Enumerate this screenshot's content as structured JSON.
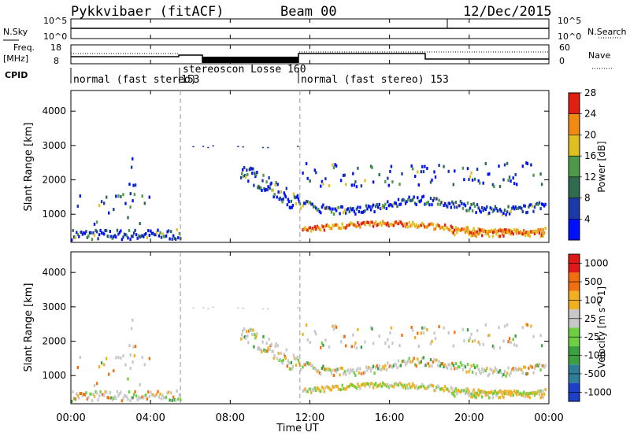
{
  "header": {
    "station": "Pykkvibaer (fitACF)",
    "beam": "Beam 00",
    "date": "12/Dec/2015"
  },
  "top_panels": {
    "nsky_label": "N.Sky",
    "nsky_ticks": [
      "10^5",
      "10^0"
    ],
    "nsearch_label": "N.Search",
    "nsearch_ticks": [
      "10^5",
      "10^0"
    ],
    "freq_label": "Freq.",
    "freq_unit": "[MHz]",
    "freq_ticks": [
      "18",
      "8"
    ],
    "nave_label": "Nave",
    "nave_ticks": [
      "60",
      "0"
    ],
    "cpid_label": "CPID",
    "cpid_segments": [
      {
        "label": "normal (fast stereo)",
        "start_h": 0,
        "end_h": 5.5
      },
      {
        "label": "153",
        "start_h": 5.5,
        "end_h": 5.5
      },
      {
        "label": "stereoscon Losse 160",
        "start_h": 5.5,
        "end_h": 11.5
      },
      {
        "label": "normal (fast stereo) 153",
        "start_h": 11.5,
        "end_h": 24
      }
    ]
  },
  "chart_data": [
    {
      "type": "heatmap",
      "parameter": "Power",
      "ylabel": "Slant Range [km]",
      "ylim": [
        180,
        4600
      ],
      "y_ticks": [
        "1000",
        "2000",
        "3000",
        "4000"
      ],
      "xlim": [
        0,
        24
      ],
      "x_ticks": [
        "00:00",
        "04:00",
        "08:00",
        "12:00",
        "16:00",
        "20:00",
        "00:00"
      ],
      "colorbar": {
        "label": "Power [dB]",
        "ticks": [
          "4",
          "8",
          "12",
          "16",
          "20",
          "24",
          "28"
        ],
        "colors": [
          "#0010ff",
          "#1a3aa8",
          "#2e6b50",
          "#4e9a4a",
          "#e0c020",
          "#f08a10",
          "#e02010"
        ]
      }
    },
    {
      "type": "heatmap",
      "parameter": "Velocity",
      "ylabel": "Slant Range [km]",
      "ylim": [
        180,
        4600
      ],
      "y_ticks": [
        "1000",
        "2000",
        "3000",
        "4000"
      ],
      "xlim": [
        0,
        24
      ],
      "x_ticks": [
        "00:00",
        "04:00",
        "08:00",
        "12:00",
        "16:00",
        "20:00",
        "00:00"
      ],
      "xlabel": "Time UT",
      "colorbar": {
        "label": "Velocity [m s^-1]",
        "ticks": [
          "1000",
          "500",
          "100",
          "25",
          "-25",
          "-100",
          "-500",
          "-1000"
        ],
        "colors": [
          "#1e40c8",
          "#2e7e9a",
          "#3aa040",
          "#6cd040",
          "#c8c8c8",
          "#f0b020",
          "#f07010",
          "#e01818"
        ]
      }
    }
  ]
}
